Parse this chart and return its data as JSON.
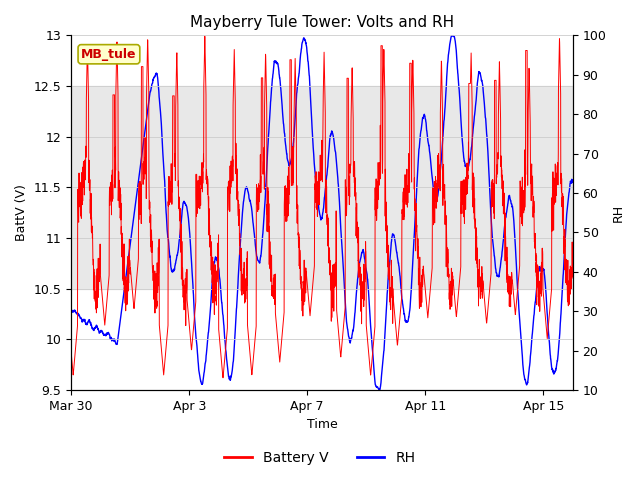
{
  "title": "Mayberry Tule Tower: Volts and RH",
  "xlabel": "Time",
  "ylabel_left": "BattV (V)",
  "ylabel_right": "RH",
  "station_label": "MB_tule",
  "ylim_left": [
    9.5,
    13.0
  ],
  "ylim_right": [
    10,
    100
  ],
  "yticks_left": [
    9.5,
    10.0,
    10.5,
    11.0,
    11.5,
    12.0,
    12.5,
    13.0
  ],
  "yticks_right": [
    10,
    20,
    30,
    40,
    50,
    60,
    70,
    80,
    90,
    100
  ],
  "xtick_labels": [
    "Mar 30",
    "Apr 3",
    "Apr 7",
    "Apr 11",
    "Apr 15"
  ],
  "xtick_positions": [
    0,
    4,
    8,
    12,
    16
  ],
  "xlim": [
    0,
    17
  ],
  "shading_ylim": [
    10.5,
    12.5
  ],
  "color_battv": "#ff0000",
  "color_rh": "#0000ff",
  "legend_labels": [
    "Battery V",
    "RH"
  ],
  "background_color": "#ffffff",
  "shading_color": "#e8e8e8",
  "title_fontsize": 11,
  "axis_fontsize": 9,
  "tick_fontsize": 9,
  "legend_fontsize": 10,
  "n_points": 3000
}
